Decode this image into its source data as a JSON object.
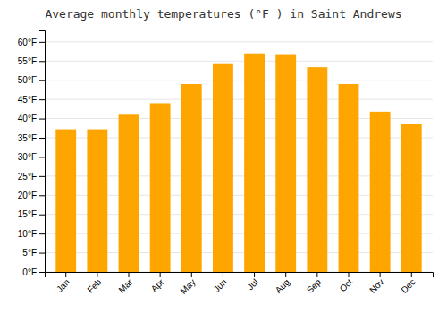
{
  "chart_data": {
    "type": "bar",
    "title": "Average monthly temperatures (°F ) in Saint Andrews",
    "categories": [
      "Jan",
      "Feb",
      "Mar",
      "Apr",
      "May",
      "Jun",
      "Jul",
      "Aug",
      "Sep",
      "Oct",
      "Nov",
      "Dec"
    ],
    "values": [
      37.2,
      37.2,
      41.0,
      44.0,
      49.0,
      54.2,
      57.0,
      56.8,
      53.4,
      49.0,
      41.8,
      38.5
    ],
    "color": "#FFA500",
    "ylim": [
      0,
      63
    ],
    "yticks": [
      {
        "value": 0,
        "label": "0°F"
      },
      {
        "value": 5,
        "label": "5°F"
      },
      {
        "value": 10,
        "label": "10°F"
      },
      {
        "value": 15,
        "label": "15°F"
      },
      {
        "value": 20,
        "label": "20°F"
      },
      {
        "value": 25,
        "label": "25°F"
      },
      {
        "value": 30,
        "label": "30°F"
      },
      {
        "value": 35,
        "label": "35°F"
      },
      {
        "value": 40,
        "label": "40°F"
      },
      {
        "value": 45,
        "label": "45°F"
      },
      {
        "value": 50,
        "label": "50°F"
      },
      {
        "value": 55,
        "label": "55°F"
      },
      {
        "value": 60,
        "label": "60°F"
      }
    ],
    "grid": true
  }
}
